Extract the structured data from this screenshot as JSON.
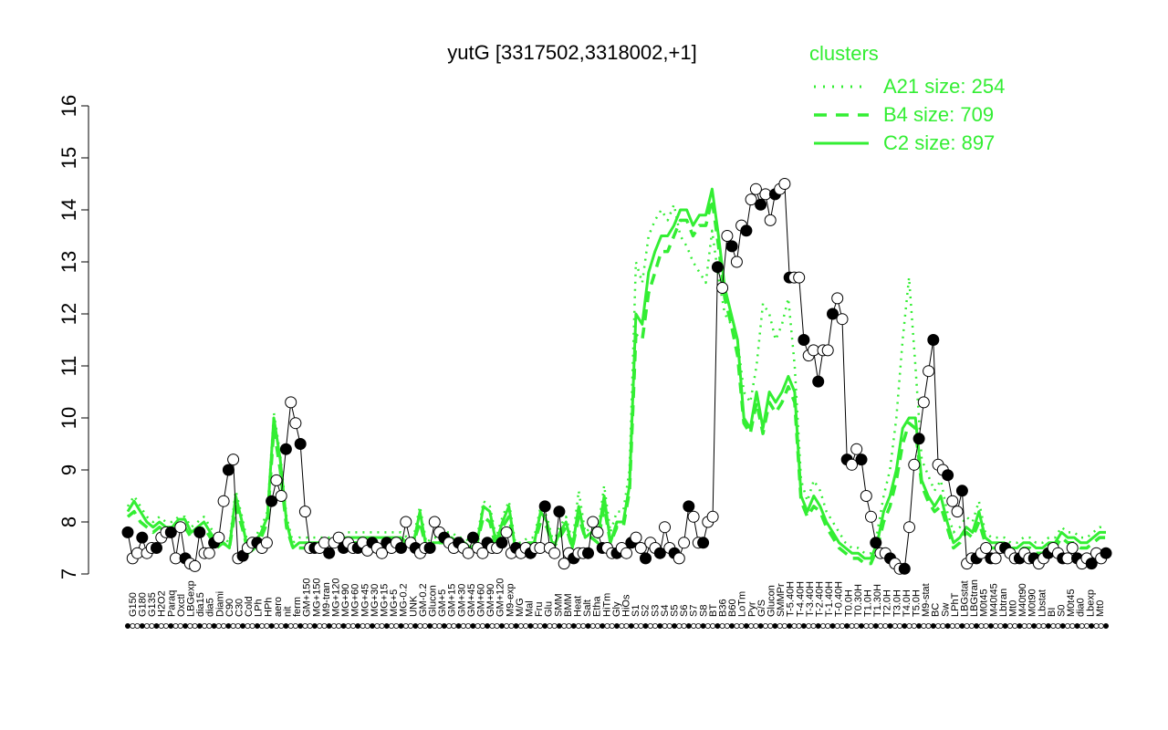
{
  "chart_data": {
    "type": "line",
    "title": "yutG [3317502,3318002,+1]",
    "xlabel": "",
    "ylabel": "",
    "ylim": [
      7,
      16
    ],
    "yticks": [
      7,
      8,
      9,
      10,
      11,
      12,
      13,
      14,
      15,
      16
    ],
    "grid": false,
    "legend": {
      "placement": "top-right",
      "title": "clusters",
      "color": "#33ee33",
      "entries": [
        {
          "label": "A21 size: 254",
          "style": "dotted"
        },
        {
          "label": "B4 size: 709",
          "style": "dashed"
        },
        {
          "label": "C2 size: 897",
          "style": "solid"
        }
      ]
    },
    "x_tick_labels": [
      "G150",
      "G180",
      "G135",
      "H2O2",
      "Paraq",
      "Oxctl",
      "LBGexp",
      "dia15",
      "dia5",
      "Diami",
      "C90",
      "C30",
      "Cold",
      "LPh",
      "HPh",
      "aero",
      "nit",
      "ferm",
      "GM+150",
      "MG+150",
      "M9-tran",
      "MG+120",
      "MG+90",
      "MG+60",
      "MG+45",
      "MG+30",
      "MG+15",
      "MG+5",
      "MG-0.2",
      "UNK",
      "GM-0.2",
      "Glucon",
      "GM+5",
      "GM+15",
      "GM+30",
      "GM+45",
      "GM+60",
      "GM+90",
      "GM+120",
      "M9-exp",
      "M/G",
      "Mal",
      "Fru",
      "Glu",
      "SMM",
      "BMM",
      "Heat",
      "Salt",
      "Etha",
      "HiTm",
      "Gly",
      "HiOs",
      "S1",
      "S2",
      "S3",
      "S4",
      "S5",
      "S6",
      "S7",
      "S8",
      "BT",
      "B36",
      "B60",
      "LoTm",
      "Pyr",
      "G/S",
      "Glucon",
      "SMMPr",
      "T-5.40H",
      "T-4.40H",
      "T-3.40H",
      "T-2.40H",
      "T-1.40H",
      "T-0.40H",
      "T0.0H",
      "T0.30H",
      "T1.0H",
      "T1.30H",
      "T2.0H",
      "T3.0H",
      "T4.0H",
      "T5.0H",
      "M9-stat",
      "BC",
      "Sw",
      "LPhT",
      "LBGstat",
      "LBGtran",
      "M0t45",
      "M40t45",
      "Lbtran",
      "Mt0",
      "M40t90",
      "M0t90",
      "Lbstat",
      "BI",
      "S0",
      "M0t45",
      "dia0",
      "Lbexp",
      "Mt0"
    ],
    "series": [
      {
        "style": "points",
        "y": [
          7.8,
          7.3,
          7.4,
          7.7,
          7.4,
          7.5,
          7.5,
          7.7,
          7.8,
          7.8,
          7.3,
          7.9,
          7.3,
          7.2,
          7.15,
          7.8,
          7.4,
          7.4,
          7.6,
          7.7,
          8.4,
          9.0,
          9.2,
          7.3,
          7.35,
          7.5,
          7.6,
          7.6,
          7.5,
          7.6,
          8.4,
          8.8,
          8.5,
          9.4,
          10.3,
          9.9,
          9.5,
          8.2,
          7.5,
          7.5,
          7.5,
          7.6,
          7.4,
          7.6,
          7.7,
          7.5,
          7.6,
          7.5,
          7.5,
          7.6,
          7.45,
          7.6,
          7.5,
          7.4,
          7.6,
          7.5,
          7.6,
          7.5,
          8.0,
          7.6,
          7.5,
          7.4,
          7.5,
          7.5,
          8.0,
          7.8,
          7.7,
          7.6,
          7.5,
          7.6,
          7.5,
          7.4,
          7.7,
          7.5,
          7.4,
          7.6,
          7.5,
          7.5,
          7.6,
          7.8,
          7.4,
          7.5,
          7.4,
          7.5,
          7.4,
          7.5,
          7.5,
          8.3,
          7.5,
          7.4,
          8.2,
          7.2,
          7.4,
          7.3,
          7.4,
          7.4,
          7.4,
          8.0,
          7.8,
          7.5,
          7.5,
          7.4,
          7.4,
          7.5,
          7.4,
          7.6,
          7.7,
          7.5,
          7.3,
          7.6,
          7.5,
          7.4,
          7.9,
          7.5,
          7.4,
          7.3,
          7.6,
          8.3,
          8.1,
          7.6,
          7.6,
          8.0,
          8.1,
          12.9,
          12.5,
          13.5,
          13.3,
          13.0,
          13.7,
          13.6,
          14.2,
          14.4,
          14.1,
          14.3,
          13.8,
          14.3,
          14.4,
          14.5,
          12.7,
          12.7,
          12.7,
          11.5,
          11.2,
          11.3,
          10.7,
          11.3,
          11.3,
          12.0,
          12.3,
          11.9,
          9.2,
          9.1,
          9.4,
          9.2,
          8.5,
          8.1,
          7.6,
          7.4,
          7.4,
          7.3,
          7.2,
          7.1,
          7.1,
          7.9,
          9.1,
          9.6,
          10.3,
          10.9,
          11.5,
          9.1,
          9.0,
          8.9,
          8.4,
          8.2,
          8.6,
          7.2,
          7.3,
          7.3,
          7.4,
          7.5,
          7.3,
          7.3,
          7.5,
          7.5,
          7.4,
          7.3,
          7.3,
          7.4,
          7.3,
          7.3,
          7.2,
          7.3,
          7.4,
          7.5,
          7.4,
          7.3,
          7.3,
          7.5,
          7.3,
          7.2,
          7.3,
          7.2,
          7.4,
          7.3,
          7.4
        ]
      },
      {
        "name": "C2 size: 897",
        "style": "solid",
        "y": [
          8.2,
          8.4,
          8.2,
          8.0,
          7.9,
          8.0,
          7.9,
          7.9,
          8.05,
          8.05,
          7.8,
          7.9,
          8.0,
          7.8,
          7.6,
          7.6,
          7.5,
          8.5,
          8.0,
          7.4,
          7.6,
          7.8,
          8.1,
          10.0,
          9.2,
          8.0,
          7.5,
          7.6,
          7.6,
          7.6,
          7.6,
          7.6,
          7.6,
          7.6,
          7.7,
          7.7,
          7.7,
          7.7,
          7.7,
          7.7,
          7.7,
          7.7,
          7.7,
          7.7,
          7.6,
          7.6,
          8.2,
          7.5,
          7.6,
          7.6,
          7.7,
          7.7,
          7.6,
          7.6,
          7.5,
          7.6,
          8.3,
          8.2,
          7.6,
          8.0,
          8.3,
          7.5,
          7.5,
          7.6,
          7.6,
          8.2,
          8.0,
          7.5,
          7.8,
          8.0,
          7.5,
          8.3,
          7.7,
          7.8,
          7.7,
          8.5,
          7.6,
          8.0,
          8.0,
          8.7,
          12.0,
          11.8,
          12.8,
          13.2,
          13.5,
          13.5,
          13.7,
          14.0,
          14.0,
          13.7,
          13.9,
          13.9,
          14.4,
          13.5,
          12.5,
          12.0,
          11.5,
          10.0,
          9.8,
          10.5,
          9.8,
          10.5,
          10.3,
          10.5,
          10.8,
          10.5,
          8.5,
          8.2,
          8.5,
          8.3,
          8.0,
          7.8,
          7.6,
          7.5,
          7.4,
          7.4,
          7.3,
          7.3,
          7.6,
          8.2,
          8.5,
          9.0,
          9.8,
          10.0,
          10.0,
          8.8,
          8.5,
          8.3,
          8.5,
          8.0,
          7.6,
          7.7,
          7.9,
          7.8,
          8.2,
          7.7,
          7.6,
          7.6,
          7.6,
          7.5,
          7.5,
          7.6,
          7.6,
          7.5,
          7.5,
          7.6,
          7.6,
          7.8,
          7.7,
          7.7,
          7.6,
          7.6,
          7.7,
          7.8,
          7.8
        ]
      },
      {
        "name": "B4 size: 709",
        "style": "dashed",
        "y": [
          8.1,
          8.2,
          8.0,
          7.9,
          7.8,
          7.9,
          7.8,
          7.8,
          7.9,
          7.9,
          7.7,
          7.8,
          7.9,
          7.7,
          7.5,
          7.6,
          7.5,
          8.3,
          7.9,
          7.4,
          7.5,
          7.7,
          8.0,
          9.8,
          9.0,
          7.9,
          7.5,
          7.5,
          7.5,
          7.5,
          7.6,
          7.6,
          7.6,
          7.6,
          7.7,
          7.6,
          7.6,
          7.6,
          7.6,
          7.6,
          7.6,
          7.6,
          7.6,
          7.6,
          7.6,
          7.6,
          8.0,
          7.5,
          7.5,
          7.6,
          7.6,
          7.6,
          7.6,
          7.6,
          7.5,
          7.6,
          8.1,
          8.0,
          7.5,
          7.9,
          8.1,
          7.5,
          7.5,
          7.5,
          7.6,
          8.0,
          7.9,
          7.5,
          7.7,
          7.9,
          7.5,
          8.1,
          7.7,
          7.7,
          7.6,
          8.3,
          7.6,
          7.9,
          7.9,
          8.6,
          11.6,
          11.5,
          12.4,
          12.8,
          13.2,
          13.2,
          13.5,
          13.8,
          13.8,
          13.5,
          13.7,
          13.7,
          14.2,
          13.3,
          12.3,
          11.8,
          11.2,
          9.9,
          9.7,
          10.3,
          9.7,
          10.3,
          10.1,
          10.3,
          10.6,
          10.3,
          8.4,
          8.1,
          8.3,
          8.2,
          7.9,
          7.7,
          7.5,
          7.4,
          7.3,
          7.3,
          7.2,
          7.2,
          7.5,
          8.0,
          8.3,
          8.8,
          9.5,
          9.9,
          9.8,
          8.7,
          8.4,
          8.2,
          8.3,
          7.9,
          7.5,
          7.6,
          7.8,
          7.7,
          8.0,
          7.6,
          7.5,
          7.5,
          7.5,
          7.4,
          7.4,
          7.5,
          7.5,
          7.4,
          7.4,
          7.5,
          7.5,
          7.7,
          7.6,
          7.6,
          7.5,
          7.5,
          7.6,
          7.7,
          7.7
        ]
      },
      {
        "name": "A21 size: 254",
        "style": "dotted",
        "y": [
          8.3,
          8.5,
          8.3,
          8.1,
          8.0,
          8.1,
          8.0,
          8.0,
          8.1,
          8.1,
          7.9,
          8.0,
          8.1,
          7.9,
          7.7,
          7.7,
          7.6,
          8.6,
          8.1,
          7.5,
          7.7,
          7.9,
          8.2,
          10.1,
          9.3,
          8.1,
          7.6,
          7.7,
          7.7,
          7.7,
          7.7,
          7.7,
          7.7,
          7.7,
          7.8,
          7.8,
          7.8,
          7.8,
          7.8,
          7.8,
          7.8,
          7.8,
          7.8,
          7.8,
          7.7,
          7.7,
          8.3,
          7.6,
          7.7,
          7.7,
          7.8,
          7.8,
          7.7,
          7.7,
          7.6,
          7.7,
          8.4,
          8.3,
          7.7,
          8.1,
          8.4,
          7.6,
          7.6,
          7.7,
          7.7,
          8.3,
          8.1,
          7.6,
          7.9,
          8.1,
          7.6,
          8.6,
          7.8,
          7.9,
          7.8,
          8.7,
          7.8,
          8.2,
          8.2,
          9.0,
          13.0,
          12.6,
          13.5,
          13.8,
          14.0,
          13.8,
          14.1,
          13.5,
          13.3,
          13.0,
          12.8,
          12.6,
          13.6,
          12.7,
          12.0,
          11.8,
          11.5,
          10.5,
          10.3,
          11.0,
          12.2,
          12.0,
          11.5,
          11.8,
          12.3,
          11.0,
          8.8,
          8.4,
          8.8,
          8.6,
          8.2,
          8.0,
          7.8,
          7.6,
          7.5,
          7.5,
          7.4,
          7.4,
          7.8,
          8.5,
          9.0,
          10.0,
          11.5,
          12.7,
          11.0,
          9.2,
          8.9,
          8.6,
          8.8,
          8.2,
          7.8,
          7.9,
          8.1,
          8.0,
          8.4,
          7.8,
          7.7,
          7.7,
          7.7,
          7.6,
          7.6,
          7.7,
          7.7,
          7.6,
          7.6,
          7.7,
          7.7,
          7.9,
          7.8,
          7.8,
          7.7,
          7.7,
          7.8,
          7.9,
          7.9
        ]
      }
    ]
  }
}
